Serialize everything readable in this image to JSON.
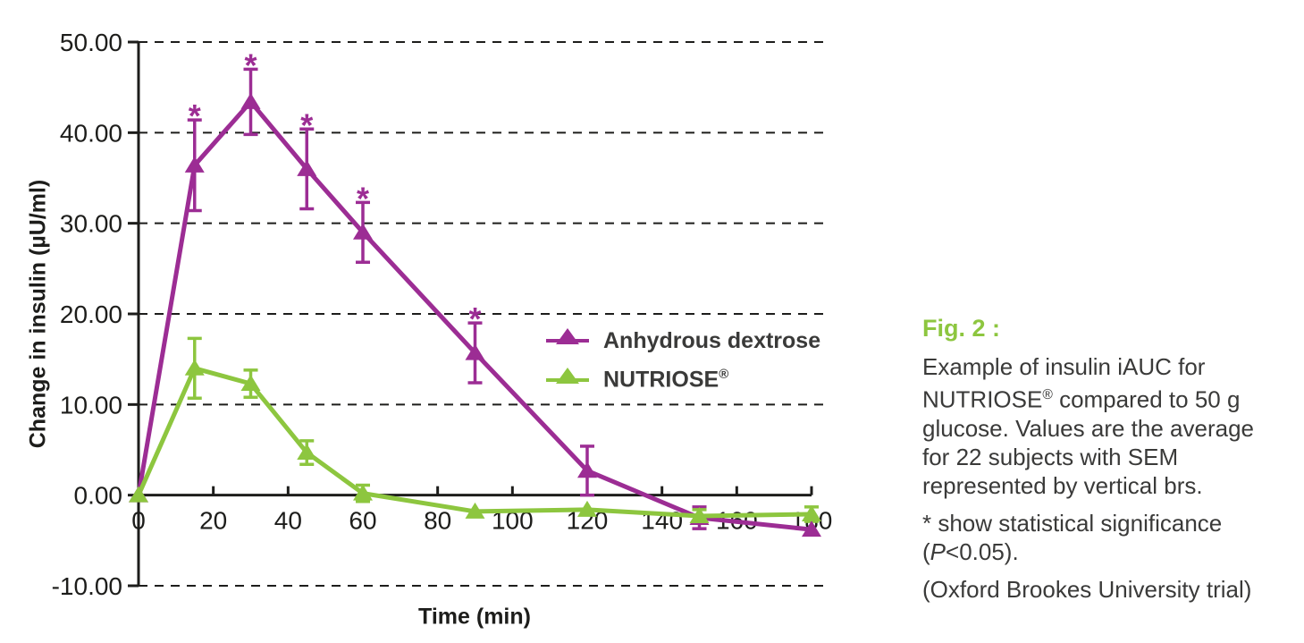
{
  "chart_data": {
    "type": "line",
    "x": [
      0,
      15,
      30,
      45,
      60,
      90,
      120,
      150,
      180
    ],
    "series": [
      {
        "name": "Anhydrous dextrose",
        "color": "#9c2d94",
        "marker": "triangle-up",
        "values": [
          0,
          36.4,
          43.4,
          36.0,
          29.0,
          15.7,
          2.7,
          -2.5,
          -3.8
        ],
        "sem": [
          0,
          5.0,
          3.6,
          4.4,
          3.3,
          3.3,
          2.7,
          1.2,
          0
        ],
        "significant_at": [
          15,
          30,
          45,
          60,
          90
        ]
      },
      {
        "name": "NUTRIOSE®",
        "color": "#8dc63f",
        "marker": "triangle-up",
        "values": [
          0,
          14.0,
          12.3,
          4.7,
          0.2,
          -1.8,
          -1.6,
          -2.3,
          -2.1
        ],
        "sem": [
          0,
          3.3,
          1.5,
          1.3,
          0.9,
          0,
          0,
          0.7,
          0.8
        ]
      }
    ],
    "title": "",
    "xlabel": "Time (min)",
    "ylabel": "Change in insulin (µU/ml)",
    "xlim": [
      0,
      180
    ],
    "ylim": [
      -10,
      50
    ],
    "x_tick_labels": [
      "0",
      "20",
      "40",
      "60",
      "80",
      "100",
      "120",
      "140",
      "160",
      "180"
    ],
    "y_tick_labels": [
      "50.00",
      "40.00",
      "30.00",
      "20.00",
      "10.00",
      "0.00",
      "-10.00"
    ],
    "grid": "horizontal dashed lines at each y tick",
    "error_bars": "SEM, vertical with caps",
    "significance_marker": "*",
    "legend_position": "inside plot, center-right"
  },
  "legend": {
    "items": [
      {
        "label": "Anhydrous dextrose",
        "sup": ""
      },
      {
        "label": "NUTRIOSE",
        "sup": "®"
      }
    ]
  },
  "caption": {
    "fig_label": "Fig. 2 :",
    "body": {
      "line1": "Example of insulin iAUC for",
      "line2_name": "NUTRIOSE",
      "line2_reg": "®",
      "line2_rest": " compared to 50 g",
      "line3": "glucose. Values are the average",
      "line4": "for 22 subjects with SEM",
      "line5": "represented by vertical brs."
    },
    "sig": {
      "line1": "* show statistical significance",
      "line2_open": "(",
      "line2_p": "P",
      "line2_rest": "<0.05)."
    },
    "source": "(Oxford Brookes University trial)"
  },
  "colors": {
    "anhydrous_dextrose": "#9c2d94",
    "nutriose": "#8dc63f",
    "ink": "#1d1d1b",
    "text": "#3a3a39"
  }
}
